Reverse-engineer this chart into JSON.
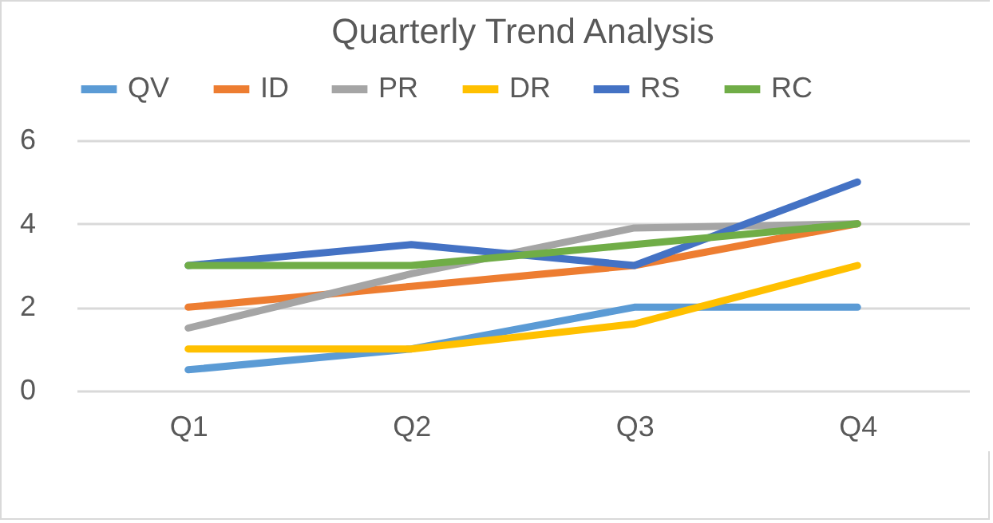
{
  "chart_data": {
    "type": "line",
    "title": "Quarterly Trend Analysis",
    "categories": [
      "Q1",
      "Q2",
      "Q3",
      "Q4"
    ],
    "series": [
      {
        "name": "QV",
        "color": "#5b9bd5",
        "values": [
          0.5,
          1,
          2,
          2
        ]
      },
      {
        "name": "ID",
        "color": "#ed7d31",
        "values": [
          2,
          2.5,
          3,
          4
        ]
      },
      {
        "name": "PR",
        "color": "#a5a5a5",
        "values": [
          1.5,
          2.8,
          3.9,
          4
        ]
      },
      {
        "name": "DR",
        "color": "#ffc000",
        "values": [
          1,
          1,
          1.6,
          3
        ]
      },
      {
        "name": "RS",
        "color": "#4472c4",
        "values": [
          3,
          3.5,
          3,
          5
        ]
      },
      {
        "name": "RC",
        "color": "#70ad47",
        "values": [
          3,
          3,
          3.5,
          4
        ]
      }
    ],
    "ylim": [
      0,
      6
    ],
    "yticks": [
      0,
      2,
      4,
      6
    ],
    "grid": "y",
    "legend": "top",
    "marker": "none",
    "line_style": "solid"
  }
}
